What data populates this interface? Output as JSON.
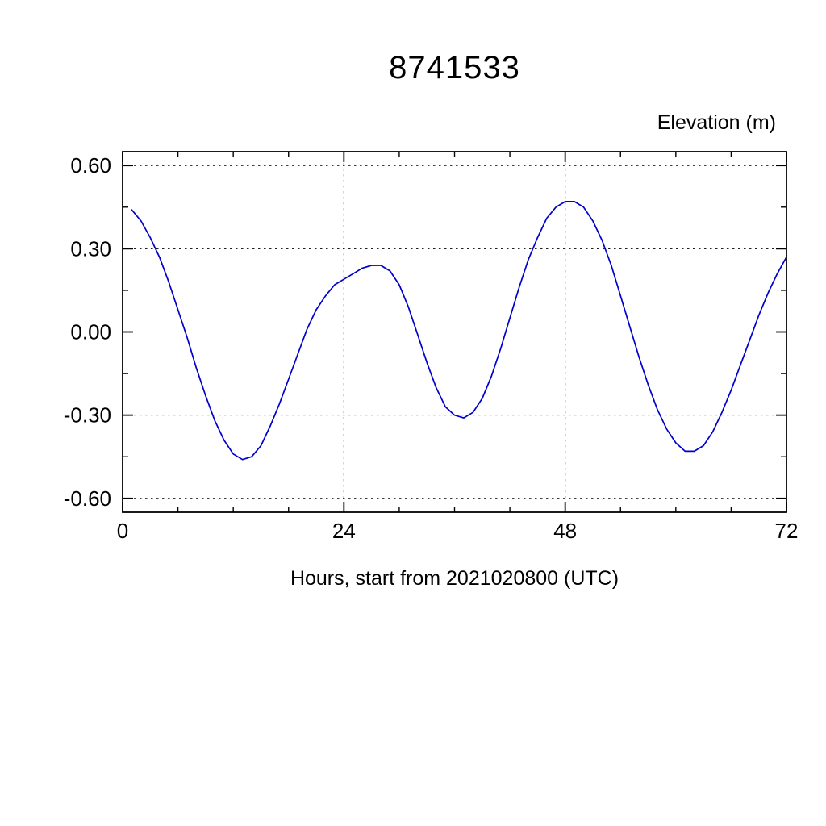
{
  "chart_data": {
    "type": "line",
    "title": "8741533",
    "ylabel_right": "Elevation (m)",
    "xlabel": "Hours, start from 2021020800 (UTC)",
    "xlim": [
      0,
      72
    ],
    "ylim": [
      -0.65,
      0.65
    ],
    "x_major_ticks": [
      0,
      24,
      48,
      72
    ],
    "x_tick_labels": [
      "0",
      "24",
      "48",
      "72"
    ],
    "x_minor_ticks": [
      6,
      12,
      18,
      30,
      36,
      42,
      54,
      60,
      66
    ],
    "y_major_ticks": [
      -0.6,
      -0.3,
      0,
      0.3,
      0.6
    ],
    "y_tick_labels": [
      "-0.60",
      "-0.30",
      "0.00",
      "0.30",
      "0.60"
    ],
    "y_minor_ticks": [
      -0.45,
      -0.15,
      0.15,
      0.45
    ],
    "x_gridlines": [
      24,
      48
    ],
    "y_gridlines": [
      -0.6,
      -0.3,
      0,
      0.3,
      0.6
    ],
    "grid": true,
    "line_color": "#0000cc",
    "series": [
      {
        "name": "elevation",
        "x": [
          1,
          2,
          3,
          4,
          5,
          6,
          7,
          8,
          9,
          10,
          11,
          12,
          13,
          14,
          15,
          16,
          17,
          18,
          19,
          20,
          21,
          22,
          23,
          24,
          25,
          26,
          27,
          28,
          29,
          30,
          31,
          32,
          33,
          34,
          35,
          36,
          37,
          38,
          39,
          40,
          41,
          42,
          43,
          44,
          45,
          46,
          47,
          48,
          49,
          50,
          51,
          52,
          53,
          54,
          55,
          56,
          57,
          58,
          59,
          60,
          61,
          62,
          63,
          64,
          65,
          66,
          67,
          68,
          69,
          70,
          71,
          72
        ],
        "values": [
          0.44,
          0.4,
          0.34,
          0.27,
          0.18,
          0.08,
          -0.02,
          -0.13,
          -0.23,
          -0.32,
          -0.39,
          -0.44,
          -0.46,
          -0.45,
          -0.41,
          -0.34,
          -0.26,
          -0.17,
          -0.08,
          0.01,
          0.08,
          0.13,
          0.17,
          0.19,
          0.21,
          0.23,
          0.24,
          0.24,
          0.22,
          0.17,
          0.09,
          -0.01,
          -0.11,
          -0.2,
          -0.27,
          -0.3,
          -0.31,
          -0.29,
          -0.24,
          -0.16,
          -0.06,
          0.05,
          0.16,
          0.26,
          0.34,
          0.41,
          0.45,
          0.47,
          0.47,
          0.45,
          0.4,
          0.33,
          0.24,
          0.13,
          0.02,
          -0.09,
          -0.19,
          -0.28,
          -0.35,
          -0.4,
          -0.43,
          -0.43,
          -0.41,
          -0.36,
          -0.29,
          -0.21,
          -0.12,
          -0.03,
          0.06,
          0.14,
          0.21,
          0.27
        ]
      }
    ]
  }
}
